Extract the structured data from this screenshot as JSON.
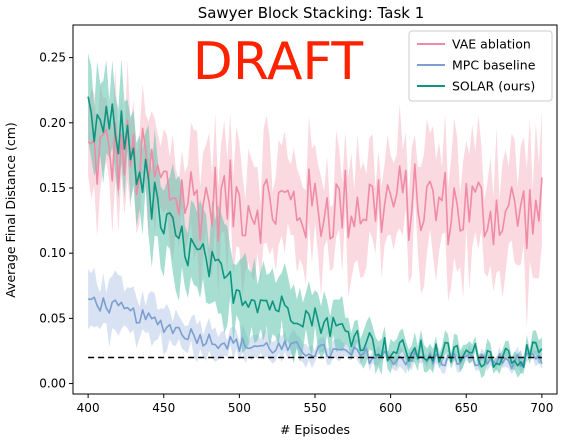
{
  "chart_data": {
    "type": "line",
    "title": "Sawyer Block Stacking: Task 1",
    "xlabel": "# Episodes",
    "ylabel": "Average Final Distance (cm)",
    "xlim": [
      390,
      710
    ],
    "ylim": [
      -0.008,
      0.275
    ],
    "xticks": [
      400,
      450,
      500,
      550,
      600,
      650,
      700
    ],
    "yticks": [
      0.0,
      0.05,
      0.1,
      0.15,
      0.2,
      0.25
    ],
    "ytick_labels": [
      "0.00",
      "0.05",
      "0.10",
      "0.15",
      "0.20",
      "0.25"
    ],
    "grid": false,
    "legend_position": "top-right",
    "watermark": "DRAFT",
    "series": [
      {
        "name": "VAE ablation",
        "color": "#ef8ba5",
        "band_color": "#f7b9c8",
        "x": [
          400,
          425,
          450,
          475,
          500,
          550,
          600,
          650,
          700
        ],
        "values": [
          0.175,
          0.175,
          0.15,
          0.14,
          0.14,
          0.135,
          0.14,
          0.135,
          0.13
        ],
        "band_halfwidth": [
          0.03,
          0.035,
          0.035,
          0.04,
          0.035,
          0.035,
          0.035,
          0.04,
          0.045
        ]
      },
      {
        "name": "MPC baseline",
        "color": "#7a9fd0",
        "band_color": "#b8cbe8",
        "x": [
          400,
          425,
          450,
          475,
          500,
          550,
          600,
          650,
          700
        ],
        "values": [
          0.065,
          0.055,
          0.045,
          0.035,
          0.03,
          0.025,
          0.02,
          0.018,
          0.017
        ],
        "band_halfwidth": [
          0.02,
          0.018,
          0.014,
          0.012,
          0.009,
          0.007,
          0.006,
          0.005,
          0.005
        ]
      },
      {
        "name": "SOLAR (ours)",
        "color": "#0e9580",
        "band_color": "#5ec2ad",
        "x": [
          400,
          425,
          450,
          475,
          500,
          550,
          600,
          650,
          700
        ],
        "values": [
          0.2,
          0.19,
          0.12,
          0.095,
          0.07,
          0.05,
          0.025,
          0.022,
          0.022
        ],
        "band_halfwidth": [
          0.03,
          0.03,
          0.035,
          0.035,
          0.03,
          0.02,
          0.01,
          0.007,
          0.007
        ]
      }
    ],
    "reference_line": {
      "y": 0.02,
      "x_range": [
        400,
        700
      ],
      "style": "dashed",
      "color": "#000000"
    }
  }
}
